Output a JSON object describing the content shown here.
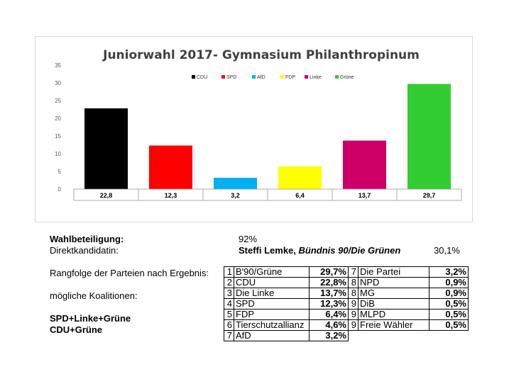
{
  "chart_data": {
    "type": "bar",
    "title": "Juniorwahl 2017- Gymnasium Philanthropinum",
    "categories": [
      "CDU",
      "SPD",
      "AfD",
      "FDP",
      "Linke",
      "Grüne"
    ],
    "values": [
      22.8,
      12.3,
      3.2,
      6.4,
      13.7,
      29.7
    ],
    "value_labels": [
      "22,8",
      "12,3",
      "3,2",
      "6,4",
      "13,7",
      "29,7"
    ],
    "colors": [
      "#000000",
      "#ff0000",
      "#00b0f0",
      "#ffff00",
      "#cc0066",
      "#33cc33"
    ],
    "ylim": [
      0,
      35
    ],
    "yticks": [
      0,
      5,
      10,
      15,
      20,
      25,
      30,
      35
    ],
    "legend": "top",
    "grid": false
  },
  "info": {
    "turnout_label": "Wahlbeteiligung:",
    "turnout_value": "92%",
    "candidate_label": "Direktkandidatin:",
    "candidate_name": "Steffi Lemke, ",
    "candidate_party": "Bündnis 90/Die Grünen",
    "candidate_pct": "30,1%",
    "ranking_label": "Rangfolge der Parteien nach Ergebnis:",
    "coalitions_label": "mögliche Koalitionen:",
    "coalitions": [
      "SPD+Linke+Grüne",
      "CDU+Grüne"
    ]
  },
  "ranking": {
    "left": [
      {
        "rank": "1",
        "party": "B'90/Grüne",
        "pct": "29,7%"
      },
      {
        "rank": "2",
        "party": "CDU",
        "pct": "22,8%"
      },
      {
        "rank": "3",
        "party": "Die Linke",
        "pct": "13,7%"
      },
      {
        "rank": "4",
        "party": "SPD",
        "pct": "12,3%"
      },
      {
        "rank": "5",
        "party": "FDP",
        "pct": "6,4%"
      },
      {
        "rank": "6",
        "party": "Tierschutzallianz",
        "pct": "4,6%"
      },
      {
        "rank": "7",
        "party": "AfD",
        "pct": "3,2%"
      }
    ],
    "right": [
      {
        "rank": "7",
        "party": "Die Partei",
        "pct": "3,2%"
      },
      {
        "rank": "8",
        "party": "NPD",
        "pct": "0,9%"
      },
      {
        "rank": "8",
        "party": "MG",
        "pct": "0,9%"
      },
      {
        "rank": "9",
        "party": "DiB",
        "pct": "0,5%"
      },
      {
        "rank": "9",
        "party": "MLPD",
        "pct": "0,5%"
      },
      {
        "rank": "9",
        "party": "Freie Wähler",
        "pct": "0,5%"
      }
    ]
  }
}
